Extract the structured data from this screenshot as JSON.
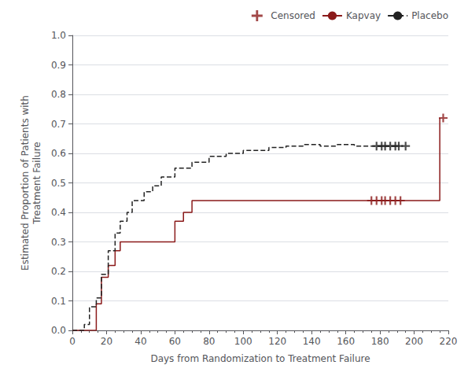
{
  "chart_data": {
    "type": "line",
    "xlabel": "Days from Randomization to Treatment Failure",
    "ylabel": "Estimated Proportion of Patients with\nTreatment Failure",
    "xlim": [
      0,
      220
    ],
    "ylim": [
      0,
      1.0
    ],
    "xticks": [
      0,
      20,
      40,
      60,
      80,
      100,
      120,
      140,
      160,
      180,
      200,
      220
    ],
    "yticks": [
      {
        "value": 0.0,
        "label": "0.0"
      },
      0.1,
      0.2,
      0.3,
      0.4,
      0.5,
      0.6,
      0.7,
      0.8,
      0.9,
      {
        "value": 1.0,
        "label": "1.0"
      }
    ],
    "grid": "y",
    "legend": "upper right",
    "series": [
      {
        "name": "Censored",
        "type": "scatter",
        "marker": "+",
        "color": "#8B1A1A",
        "x": [
          175,
          178,
          181,
          183,
          186,
          189,
          192,
          217
        ],
        "values": [
          0.44,
          0.44,
          0.44,
          0.44,
          0.44,
          0.44,
          0.44,
          0.72
        ]
      },
      {
        "name": "Censored",
        "type": "scatter",
        "marker": "+",
        "color": "#222222",
        "x": [
          178,
          181,
          183,
          186,
          189,
          191,
          195
        ],
        "values": [
          0.625,
          0.625,
          0.625,
          0.625,
          0.625,
          0.625,
          0.625
        ]
      },
      {
        "name": "Kapvay",
        "type": "line",
        "line_style": "solid",
        "color": "#8B1A1A",
        "x": [
          0,
          14,
          14,
          17,
          17,
          21,
          21,
          25,
          25,
          28,
          28,
          60,
          60,
          65,
          65,
          70,
          70,
          75,
          75,
          130,
          130,
          135,
          135,
          215,
          215
        ],
        "values": [
          0,
          0,
          0.09,
          0.09,
          0.18,
          0.18,
          0.22,
          0.22,
          0.27,
          0.27,
          0.3,
          0.3,
          0.37,
          0.37,
          0.4,
          0.4,
          0.44,
          0.44,
          0.44,
          0.44,
          0.44,
          0.44,
          0.44,
          0.44,
          0.72
        ]
      },
      {
        "name": "Placebo",
        "type": "line",
        "line_style": "dashed",
        "color": "#222222",
        "x": [
          0,
          7,
          7,
          10,
          10,
          14,
          14,
          17,
          17,
          21,
          21,
          25,
          25,
          28,
          28,
          32,
          32,
          35,
          35,
          42,
          42,
          47,
          47,
          52,
          52,
          60,
          60,
          70,
          70,
          80,
          80,
          90,
          90,
          100,
          100,
          115,
          115,
          125,
          125,
          135,
          135,
          145,
          145,
          155,
          155,
          165,
          165,
          175,
          175,
          185,
          185,
          190,
          190
        ],
        "values": [
          0,
          0,
          0.02,
          0.02,
          0.08,
          0.08,
          0.11,
          0.11,
          0.19,
          0.19,
          0.27,
          0.27,
          0.33,
          0.33,
          0.37,
          0.37,
          0.4,
          0.4,
          0.44,
          0.44,
          0.47,
          0.47,
          0.49,
          0.49,
          0.52,
          0.52,
          0.55,
          0.55,
          0.57,
          0.57,
          0.59,
          0.59,
          0.6,
          0.6,
          0.61,
          0.61,
          0.62,
          0.62,
          0.625,
          0.625,
          0.63,
          0.63,
          0.625,
          0.625,
          0.63,
          0.63,
          0.625,
          0.625,
          0.625,
          0.625,
          0.625,
          0.625,
          0.625
        ]
      }
    ]
  }
}
